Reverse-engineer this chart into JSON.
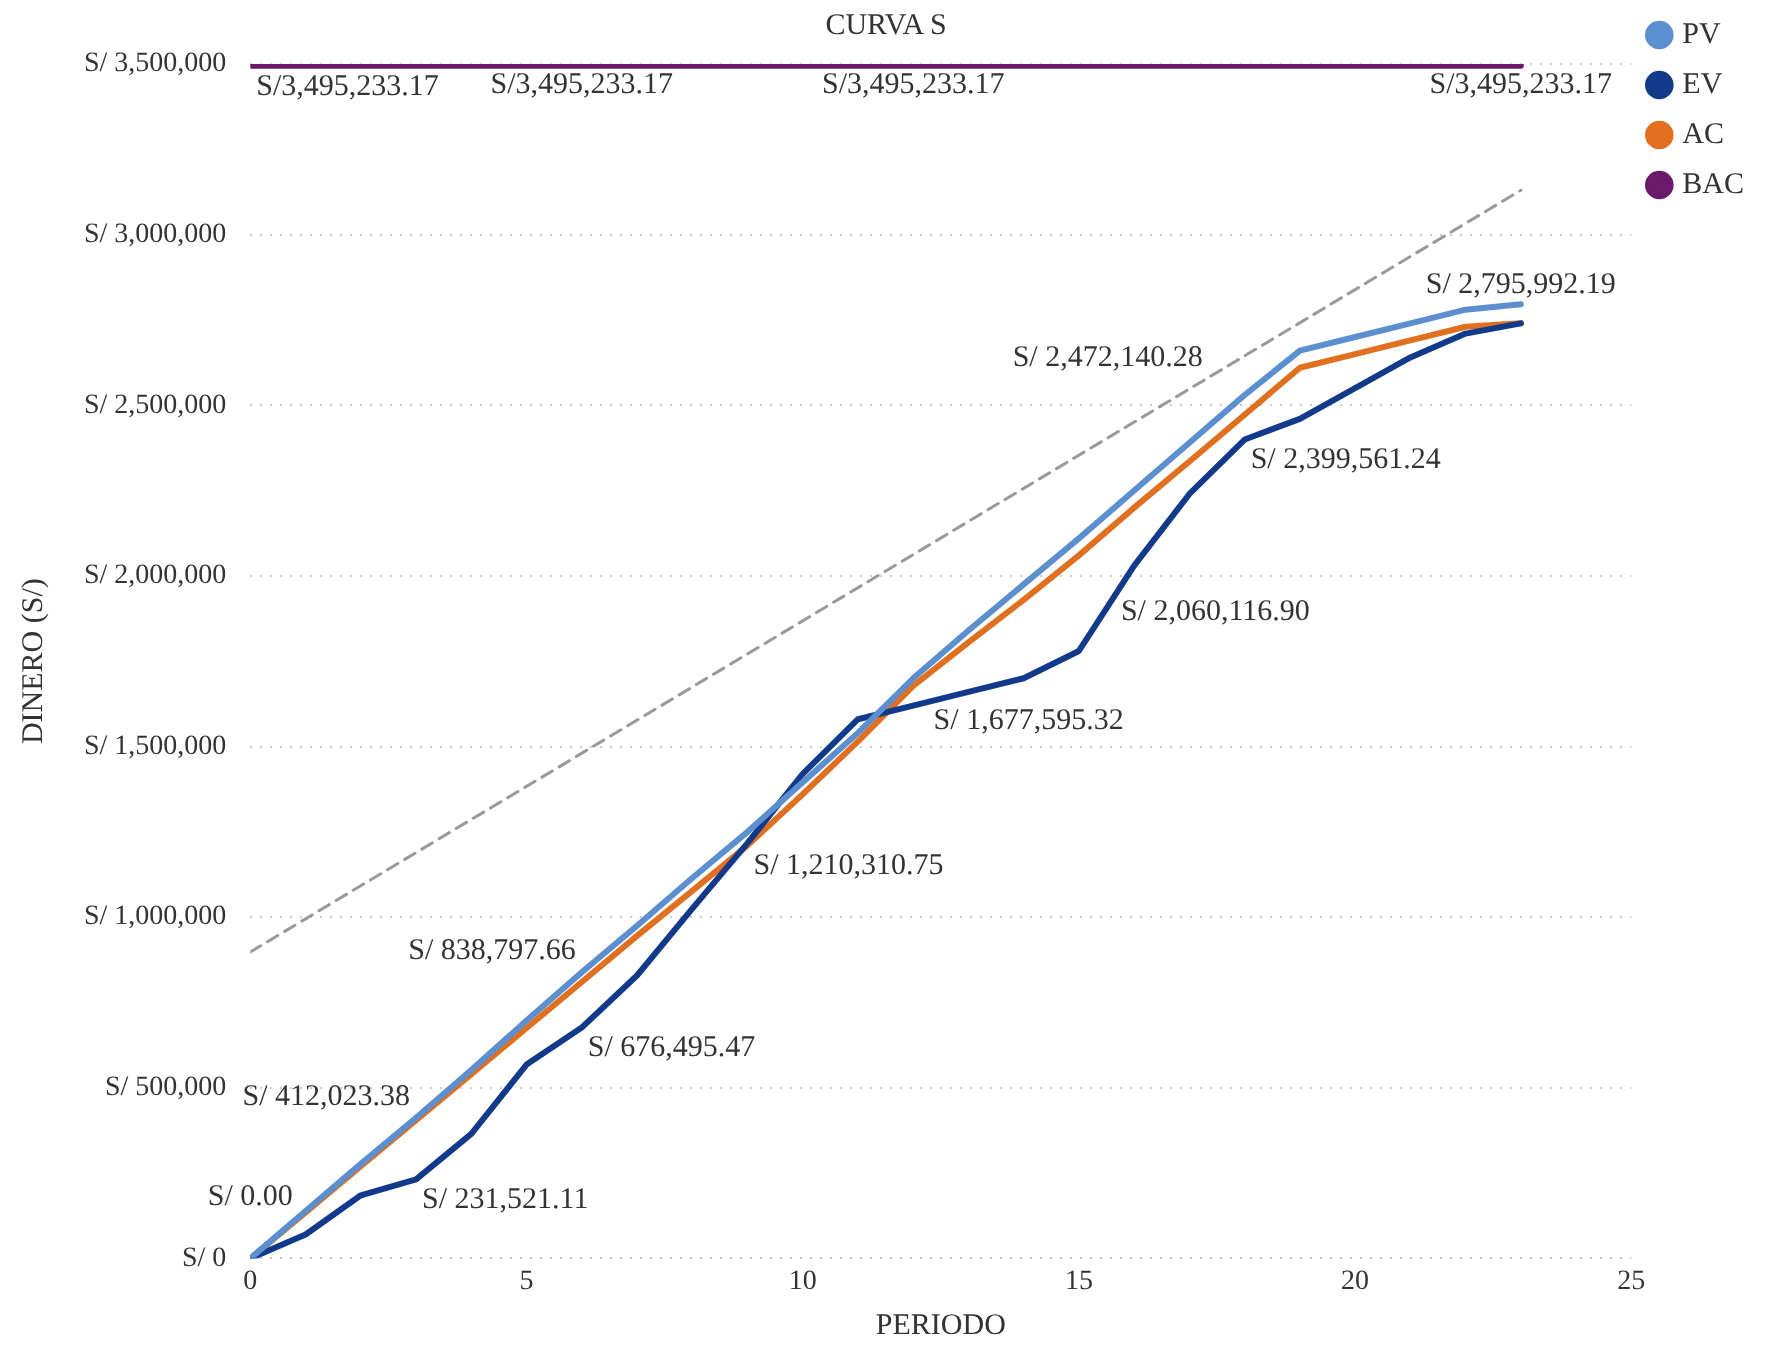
{
  "chart_data": {
    "type": "line",
    "title": "CURVA S",
    "xlabel": "PERIODO",
    "ylabel": "DINERO (S/)",
    "x": [
      0,
      1,
      2,
      3,
      4,
      5,
      6,
      7,
      8,
      9,
      10,
      11,
      12,
      13,
      14,
      15,
      16,
      17,
      18,
      19,
      20,
      21,
      22,
      23
    ],
    "xlim": [
      0,
      25
    ],
    "xticks": [
      0,
      5,
      10,
      15,
      20,
      25
    ],
    "ylim": [
      0,
      3500000
    ],
    "yticks": [
      {
        "value": 0,
        "label": "S/ 0"
      },
      {
        "value": 500000,
        "label": "S/ 500,000"
      },
      {
        "value": 1000000,
        "label": "S/ 1,000,000"
      },
      {
        "value": 1500000,
        "label": "S/ 1,500,000"
      },
      {
        "value": 2000000,
        "label": "S/ 2,000,000"
      },
      {
        "value": 2500000,
        "label": "S/ 2,500,000"
      },
      {
        "value": 3000000,
        "label": "S/ 3,000,000"
      },
      {
        "value": 3500000,
        "label": "S/ 3,500,000"
      }
    ],
    "grid": "y",
    "legend": "top right",
    "marker": "none",
    "series": [
      {
        "name": "PV",
        "color": "#5b8fd0",
        "values": [
          0,
          139000,
          277000,
          412023.38,
          552000,
          697000,
          838797.66,
          975000,
          1115000,
          1250000,
          1395000,
          1540000,
          1700000,
          1840000,
          1975000,
          2110000,
          2250000,
          2390000,
          2530000,
          2660000,
          2700000,
          2740000,
          2780000,
          2795992.19
        ],
        "value_labels": [
          null,
          null,
          null,
          "S/ 412,023.38",
          null,
          null,
          "S/ 838,797.66",
          null,
          null,
          null,
          null,
          null,
          null,
          null,
          null,
          null,
          null,
          null,
          null,
          null,
          null,
          null,
          null,
          "S/ 2,795,992.19"
        ]
      },
      {
        "name": "EV",
        "color": "#123a8a",
        "values": [
          0,
          70000,
          185000,
          231521.11,
          365000,
          568000,
          676495.47,
          829000,
          1025000,
          1217000,
          1420000,
          1580000,
          1620000,
          1660000,
          1700000,
          1780000,
          2030000,
          2240000,
          2399561.24,
          2460000,
          2550000,
          2640000,
          2710000,
          2740000
        ],
        "value_labels": [
          "S/ 0.00",
          null,
          null,
          "S/ 231,521.11",
          null,
          null,
          "S/ 676,495.47",
          null,
          null,
          null,
          null,
          null,
          null,
          null,
          null,
          null,
          null,
          null,
          "S/ 2,399,561.24",
          null,
          null,
          null,
          null,
          null
        ]
      },
      {
        "name": "AC",
        "color": "#e07020",
        "values": [
          0,
          135000,
          270000,
          405000,
          540000,
          675000,
          810000,
          945000,
          1077000,
          1210310.75,
          1360000,
          1515000,
          1677595.32,
          1805000,
          1930000,
          2060116.9,
          2200000,
          2335000,
          2472140.28,
          2610000,
          2650000,
          2690000,
          2730000,
          2740000
        ],
        "value_labels": [
          null,
          null,
          null,
          null,
          null,
          null,
          null,
          null,
          null,
          "S/ 1,210,310.75",
          null,
          null,
          "S/ 1,677,595.32",
          null,
          null,
          "S/ 2,060,116.90",
          null,
          null,
          "S/ 2,472,140.28",
          null,
          null,
          null,
          null,
          null
        ]
      },
      {
        "name": "BAC",
        "color": "#6b1a6b",
        "values": [
          3495233.17,
          3495233.17,
          3495233.17,
          3495233.17,
          3495233.17,
          3495233.17,
          3495233.17,
          3495233.17,
          3495233.17,
          3495233.17,
          3495233.17,
          3495233.17,
          3495233.17,
          3495233.17,
          3495233.17,
          3495233.17,
          3495233.17,
          3495233.17,
          3495233.17,
          3495233.17,
          3495233.17,
          3495233.17,
          3495233.17,
          3495233.17
        ],
        "value_labels": [
          "S/3,495,233.17",
          null,
          null,
          null,
          null,
          null,
          "S/3,495,233.17",
          null,
          null,
          null,
          null,
          null,
          "S/3,495,233.17",
          null,
          null,
          null,
          null,
          null,
          null,
          null,
          null,
          null,
          null,
          "S/3,495,233.17"
        ]
      },
      {
        "type": "line",
        "color": "#999999",
        "line_style": "dashed",
        "x": [
          0,
          23
        ],
        "values": [
          898000,
          3130000
        ]
      }
    ]
  }
}
